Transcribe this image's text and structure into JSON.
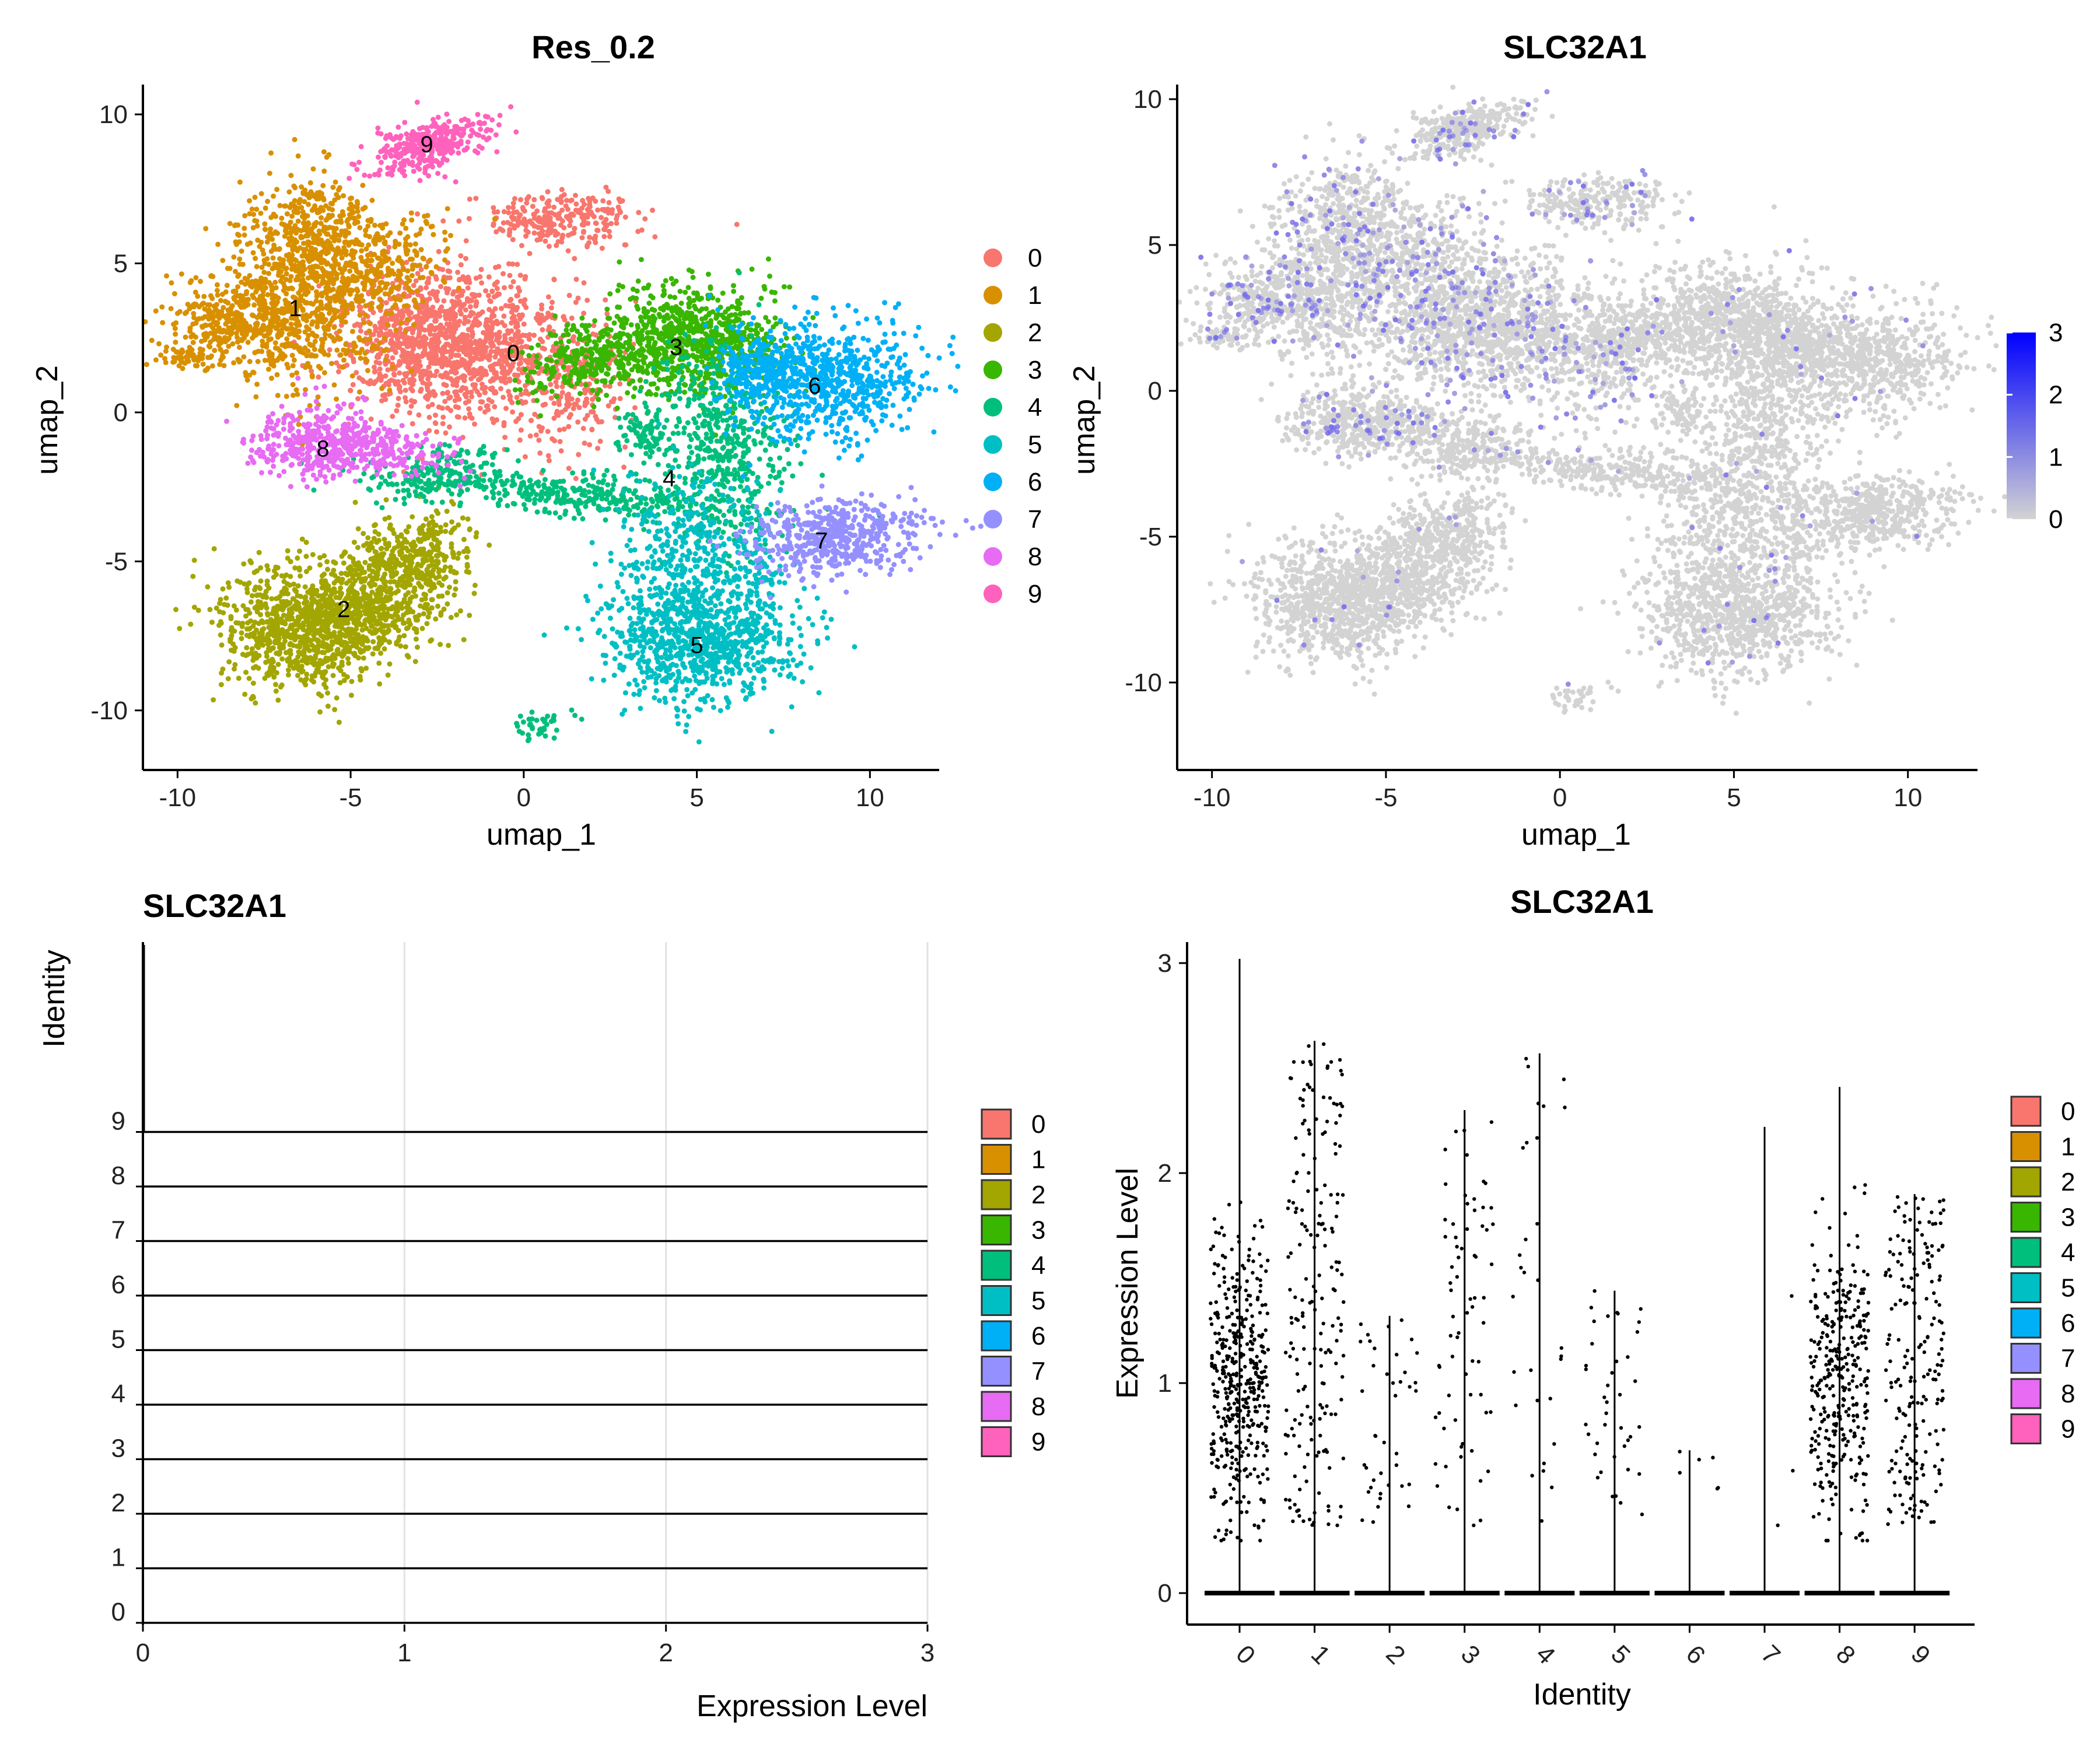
{
  "colors": {
    "clusters": [
      "#F8766D",
      "#D89000",
      "#A3A500",
      "#39B600",
      "#00BF7D",
      "#00BFC4",
      "#00B0F6",
      "#9590FF",
      "#E76BF3",
      "#FF62BC"
    ],
    "feature_low": "#D3D3D3",
    "feature_high": "#0000FF"
  },
  "chart_data": [
    {
      "type": "scatter",
      "title": "Res_0.2",
      "xlabel": "umap_1",
      "ylabel": "umap_2",
      "xlim": [
        -11,
        12
      ],
      "ylim": [
        -12,
        11
      ],
      "xticks": [
        -10,
        -5,
        0,
        5,
        10
      ],
      "yticks": [
        -10,
        -5,
        0,
        5,
        10
      ],
      "legend": {
        "placement": "right",
        "entries": [
          "0",
          "1",
          "2",
          "3",
          "4",
          "5",
          "6",
          "7",
          "8",
          "9"
        ]
      },
      "clusters": [
        {
          "label": "0",
          "x": -0.3,
          "y": 2.0
        },
        {
          "label": "1",
          "x": -6.6,
          "y": 3.5
        },
        {
          "label": "2",
          "x": -5.2,
          "y": -6.6
        },
        {
          "label": "3",
          "x": 4.4,
          "y": 2.2
        },
        {
          "label": "4",
          "x": 4.2,
          "y": -2.2
        },
        {
          "label": "5",
          "x": 5.0,
          "y": -7.8
        },
        {
          "label": "6",
          "x": 8.4,
          "y": 0.9
        },
        {
          "label": "7",
          "x": 8.6,
          "y": -4.3
        },
        {
          "label": "8",
          "x": -5.8,
          "y": -1.2
        },
        {
          "label": "9",
          "x": -2.8,
          "y": 9.0
        }
      ]
    },
    {
      "type": "scatter",
      "title": "SLC32A1",
      "xlabel": "umap_1",
      "ylabel": "umap_2",
      "xlim": [
        -11,
        12
      ],
      "ylim": [
        -13,
        10.5
      ],
      "xticks": [
        -10,
        -5,
        0,
        5,
        10
      ],
      "yticks": [
        -10,
        -5,
        0,
        5,
        10
      ],
      "colorbar": {
        "min": 0,
        "max": 3,
        "ticks": [
          "0",
          "1",
          "2",
          "3"
        ]
      }
    },
    {
      "type": "ridge",
      "title": "SLC32A1",
      "xlabel": "Expression Level",
      "ylabel": "Identity",
      "xlim": [
        0,
        3
      ],
      "xticks": [
        "0",
        "1",
        "2",
        "3"
      ],
      "categories": [
        "0",
        "1",
        "2",
        "3",
        "4",
        "5",
        "6",
        "7",
        "8",
        "9"
      ],
      "legend": {
        "placement": "right",
        "entries": [
          "0",
          "1",
          "2",
          "3",
          "4",
          "5",
          "6",
          "7",
          "8",
          "9"
        ]
      }
    },
    {
      "type": "violin",
      "title": "SLC32A1",
      "xlabel": "Identity",
      "ylabel": "Expression Level",
      "ylim": [
        -0.15,
        3.1
      ],
      "yticks": [
        "0",
        "1",
        "2",
        "3"
      ],
      "categories": [
        "0",
        "1",
        "2",
        "3",
        "4",
        "5",
        "6",
        "7",
        "8",
        "9"
      ],
      "max_values": [
        3.02,
        2.63,
        1.32,
        2.3,
        2.57,
        1.44,
        0.68,
        2.22,
        2.41,
        1.9
      ],
      "expressing_points": [
        420,
        190,
        40,
        70,
        30,
        40,
        6,
        3,
        330,
        200
      ],
      "legend": {
        "placement": "right",
        "entries": [
          "0",
          "1",
          "2",
          "3",
          "4",
          "5",
          "6",
          "7",
          "8",
          "9"
        ]
      }
    }
  ]
}
